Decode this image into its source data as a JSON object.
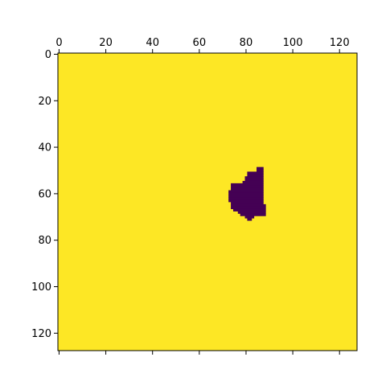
{
  "chart_data": {
    "type": "heatmap",
    "title": "",
    "xlabel": "",
    "ylabel": "",
    "colormap": "viridis",
    "background_color": "#fde725",
    "mask_color": "#440154",
    "grid": false,
    "image_size": [
      128,
      128
    ],
    "xlim": [
      0,
      128
    ],
    "ylim": [
      128,
      0
    ],
    "x_ticks_top": [
      0,
      20,
      40,
      60,
      80,
      100,
      120
    ],
    "x_tick_labels": [
      "0",
      "20",
      "40",
      "60",
      "80",
      "100",
      "120"
    ],
    "y_ticks": [
      0,
      20,
      40,
      60,
      80,
      100,
      120
    ],
    "y_tick_labels": [
      "0",
      "20",
      "40",
      "60",
      "80",
      "100",
      "120"
    ],
    "mask_rows": [
      {
        "row": 49,
        "start": 85,
        "end": 88
      },
      {
        "row": 50,
        "start": 85,
        "end": 88
      },
      {
        "row": 51,
        "start": 81,
        "end": 88
      },
      {
        "row": 52,
        "start": 81,
        "end": 88
      },
      {
        "row": 53,
        "start": 80,
        "end": 88
      },
      {
        "row": 54,
        "start": 80,
        "end": 88
      },
      {
        "row": 55,
        "start": 79,
        "end": 88
      },
      {
        "row": 56,
        "start": 74,
        "end": 88
      },
      {
        "row": 57,
        "start": 74,
        "end": 88
      },
      {
        "row": 58,
        "start": 74,
        "end": 88
      },
      {
        "row": 59,
        "start": 73,
        "end": 88
      },
      {
        "row": 60,
        "start": 73,
        "end": 88
      },
      {
        "row": 61,
        "start": 73,
        "end": 88
      },
      {
        "row": 62,
        "start": 73,
        "end": 88
      },
      {
        "row": 63,
        "start": 73,
        "end": 88
      },
      {
        "row": 64,
        "start": 74,
        "end": 88
      },
      {
        "row": 65,
        "start": 74,
        "end": 89
      },
      {
        "row": 66,
        "start": 74,
        "end": 89
      },
      {
        "row": 67,
        "start": 75,
        "end": 89
      },
      {
        "row": 68,
        "start": 77,
        "end": 89
      },
      {
        "row": 69,
        "start": 78,
        "end": 89
      },
      {
        "row": 70,
        "start": 80,
        "end": 84
      },
      {
        "row": 71,
        "start": 81,
        "end": 83
      }
    ]
  }
}
